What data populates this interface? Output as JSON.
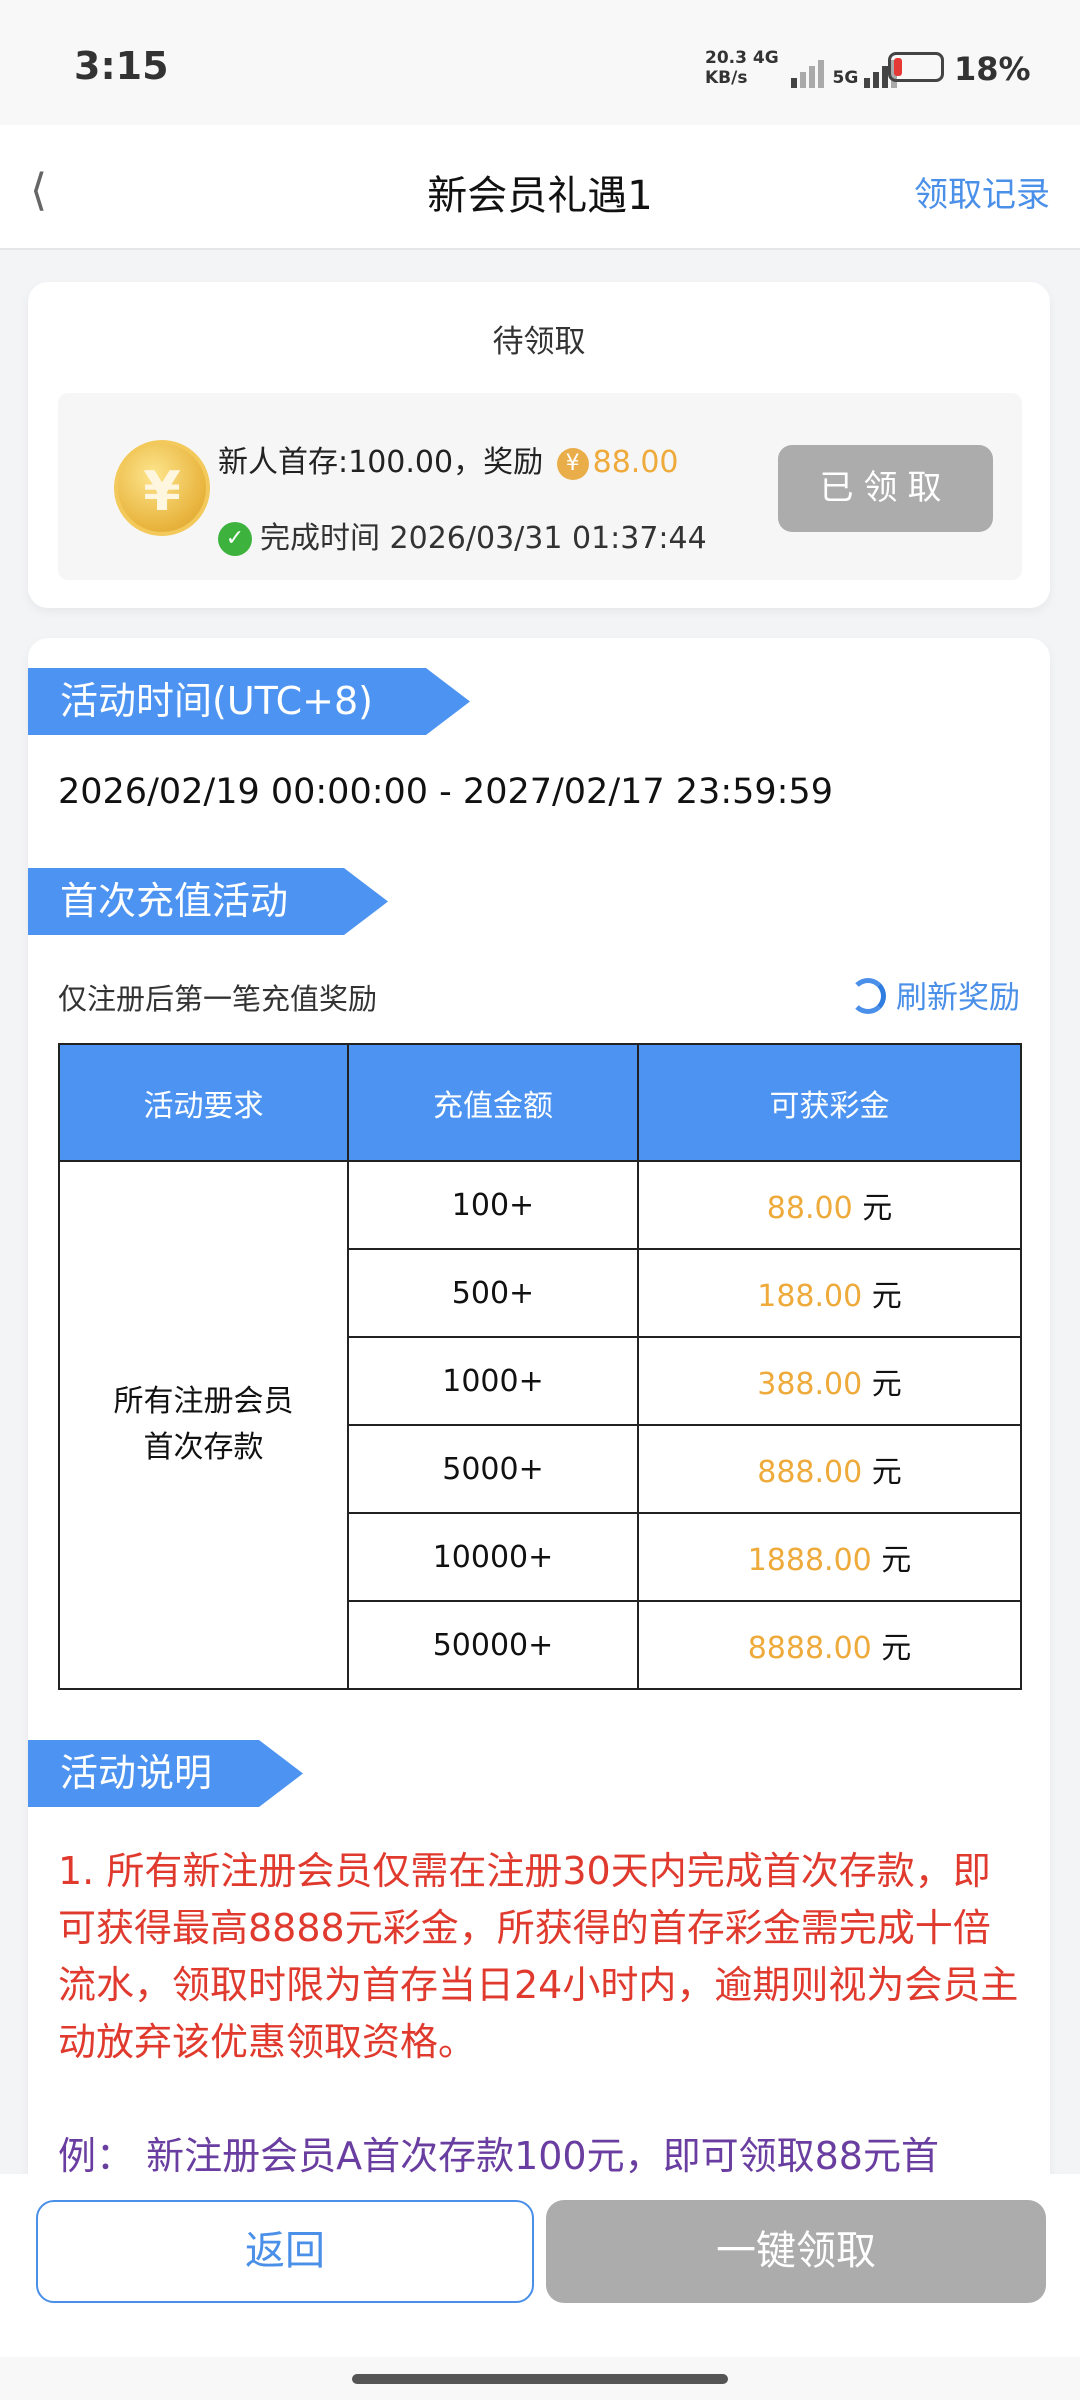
{
  "status_bar": {
    "time": "3:15",
    "net_speed": "20.3",
    "net_unit": "KB/s",
    "net1": "4G",
    "net2": "5G",
    "battery": "18%",
    "battery_level": 0.18
  },
  "header": {
    "title": "新会员礼遇1",
    "records": "领取记录"
  },
  "pending": {
    "title": "待领取",
    "line1_prefix": "新人首存:100.00，奖励",
    "currency": "¥",
    "reward": "88.00",
    "time_label": "完成时间 2026/03/31 01:37:44",
    "button": "已领取"
  },
  "activity_time": {
    "title": "活动时间(UTC+8)",
    "range": "2026/02/19 00:00:00 - 2027/02/17 23:59:59"
  },
  "first_deposit": {
    "title": "首次充值活动",
    "note": "仅注册后第一笔充值奖励",
    "refresh": "刷新奖励",
    "headers": [
      "活动要求",
      "充值金额",
      "可获彩金"
    ],
    "requirement": [
      "所有注册会员",
      "首次存款"
    ],
    "unit": "元",
    "rows": [
      {
        "amount": "100+",
        "bonus": "88.00"
      },
      {
        "amount": "500+",
        "bonus": "188.00"
      },
      {
        "amount": "1000+",
        "bonus": "388.00"
      },
      {
        "amount": "5000+",
        "bonus": "888.00"
      },
      {
        "amount": "10000+",
        "bonus": "1888.00"
      },
      {
        "amount": "50000+",
        "bonus": "8888.00"
      }
    ]
  },
  "description": {
    "title": "活动说明",
    "text": "1. 所有新注册会员仅需在注册30天内完成首次存款，即可获得最高8888元彩金，所获得的首存彩金需完成十倍流水，领取时限为首存当日24小时内，逾期则视为会员主动放弃该优惠领取资格。",
    "example": "例：  新注册会员A首次存款100元，即可领取88元首"
  },
  "footer": {
    "back": "返回",
    "claim_all": "一键领取"
  },
  "colors": {
    "accent": "#4d94f2",
    "gold": "#eeaa3a",
    "red_text": "#e03a2e",
    "purple_text": "#6a3ea0",
    "disabled": "#acacac"
  }
}
